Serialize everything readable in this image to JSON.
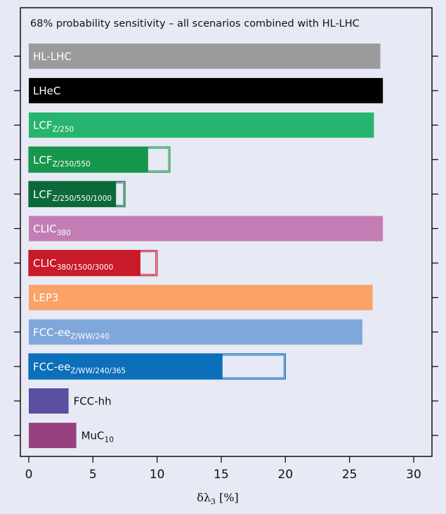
{
  "chart_data": {
    "type": "bar",
    "orientation": "horizontal",
    "title": "68% probability sensitivity – all scenarios combined with HL-LHC",
    "xlabel": {
      "main": "δλ",
      "sub": "3",
      "unit": " [%]"
    },
    "xlim": [
      0,
      31
    ],
    "xticks": [
      0,
      5,
      10,
      15,
      20,
      25,
      30
    ],
    "grid": false,
    "bars": [
      {
        "label": "HL-LHC",
        "sub": "",
        "value": 27.4,
        "outline": null,
        "color": "#9b9b9b",
        "label_color": "#ffffff",
        "label_position": "inside"
      },
      {
        "label": "LHeC",
        "sub": "",
        "value": 27.6,
        "outline": null,
        "color": "#000000",
        "label_color": "#ffffff",
        "label_position": "inside"
      },
      {
        "label": "LCF",
        "sub": "Z/250",
        "value": 26.9,
        "outline": null,
        "color": "#26b56e",
        "label_color": "#ffffff",
        "label_position": "inside"
      },
      {
        "label": "LCF",
        "sub": "Z/250/550",
        "value": 9.3,
        "outline": 11.0,
        "color": "#17974c",
        "label_color": "#ffffff",
        "label_position": "inside"
      },
      {
        "label": "LCF",
        "sub": "Z/250/550/1000",
        "value": 6.8,
        "outline": 7.5,
        "color": "#0c6a3a",
        "label_color": "#ffffff",
        "label_position": "inside"
      },
      {
        "label": "CLIC",
        "sub": "380",
        "value": 27.6,
        "outline": null,
        "color": "#c47db4",
        "label_color": "#ffffff",
        "label_position": "inside"
      },
      {
        "label": "CLIC",
        "sub": "380/1500/3000",
        "value": 8.7,
        "outline": 10.0,
        "color": "#c81a28",
        "label_color": "#ffffff",
        "label_position": "inside"
      },
      {
        "label": "LEP3",
        "sub": "",
        "value": 26.8,
        "outline": null,
        "color": "#faa268",
        "label_color": "#ffffff",
        "label_position": "inside"
      },
      {
        "label": "FCC-ee",
        "sub": "Z/WW/240",
        "value": 26.0,
        "outline": null,
        "color": "#7fa7d9",
        "label_color": "#ffffff",
        "label_position": "inside"
      },
      {
        "label": "FCC-ee",
        "sub": "Z/WW/240/365",
        "value": 15.1,
        "outline": 20.0,
        "color": "#0b6fba",
        "label_color": "#ffffff",
        "label_position": "inside"
      },
      {
        "label": "FCC-hh",
        "sub": "",
        "value": 3.1,
        "outline": null,
        "color": "#5a4fa0",
        "label_color": "#111111",
        "label_position": "outside"
      },
      {
        "label": "MuC",
        "sub": "10",
        "value": 3.7,
        "outline": null,
        "color": "#983f80",
        "label_color": "#111111",
        "label_position": "outside"
      }
    ]
  }
}
